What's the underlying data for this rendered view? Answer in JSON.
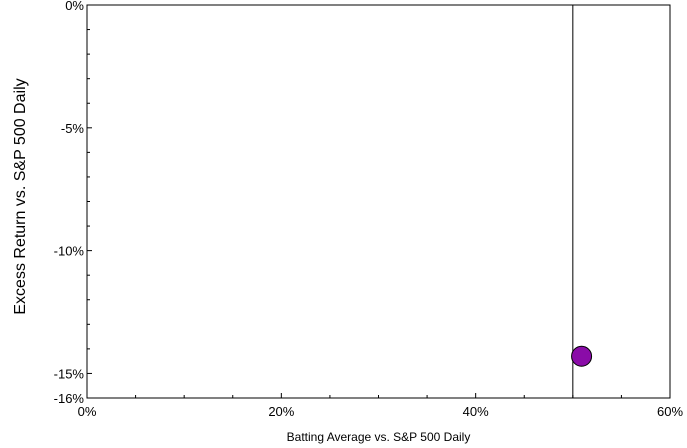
{
  "chart_data": {
    "type": "scatter",
    "xlabel": "Batting Average vs. S&P 500 Daily",
    "ylabel": "Excess Return vs. S&P 500 Daily",
    "xlim": [
      0,
      60
    ],
    "ylim": [
      -16,
      0
    ],
    "x_ticks": [
      {
        "value": 0,
        "label": "0%"
      },
      {
        "value": 20,
        "label": "20%"
      },
      {
        "value": 40,
        "label": "40%"
      },
      {
        "value": 60,
        "label": "60%"
      }
    ],
    "x_minor_ticks": [
      5,
      10,
      15,
      25,
      30,
      35,
      45,
      50,
      55
    ],
    "y_ticks": [
      {
        "value": 0,
        "label": "0%"
      },
      {
        "value": -5,
        "label": "-5%"
      },
      {
        "value": -10,
        "label": "-10%"
      },
      {
        "value": -15,
        "label": "-15%"
      },
      {
        "value": -16,
        "label": "-16%"
      }
    ],
    "y_minor_ticks": [
      -1,
      -2,
      -3,
      -4,
      -6,
      -7,
      -8,
      -9,
      -11,
      -12,
      -13,
      -14
    ],
    "reference_line_x": 50,
    "grid": false,
    "legend": "none",
    "points": [
      {
        "x": 50.9,
        "y": -14.3,
        "color": "#8a0ca8"
      }
    ]
  }
}
